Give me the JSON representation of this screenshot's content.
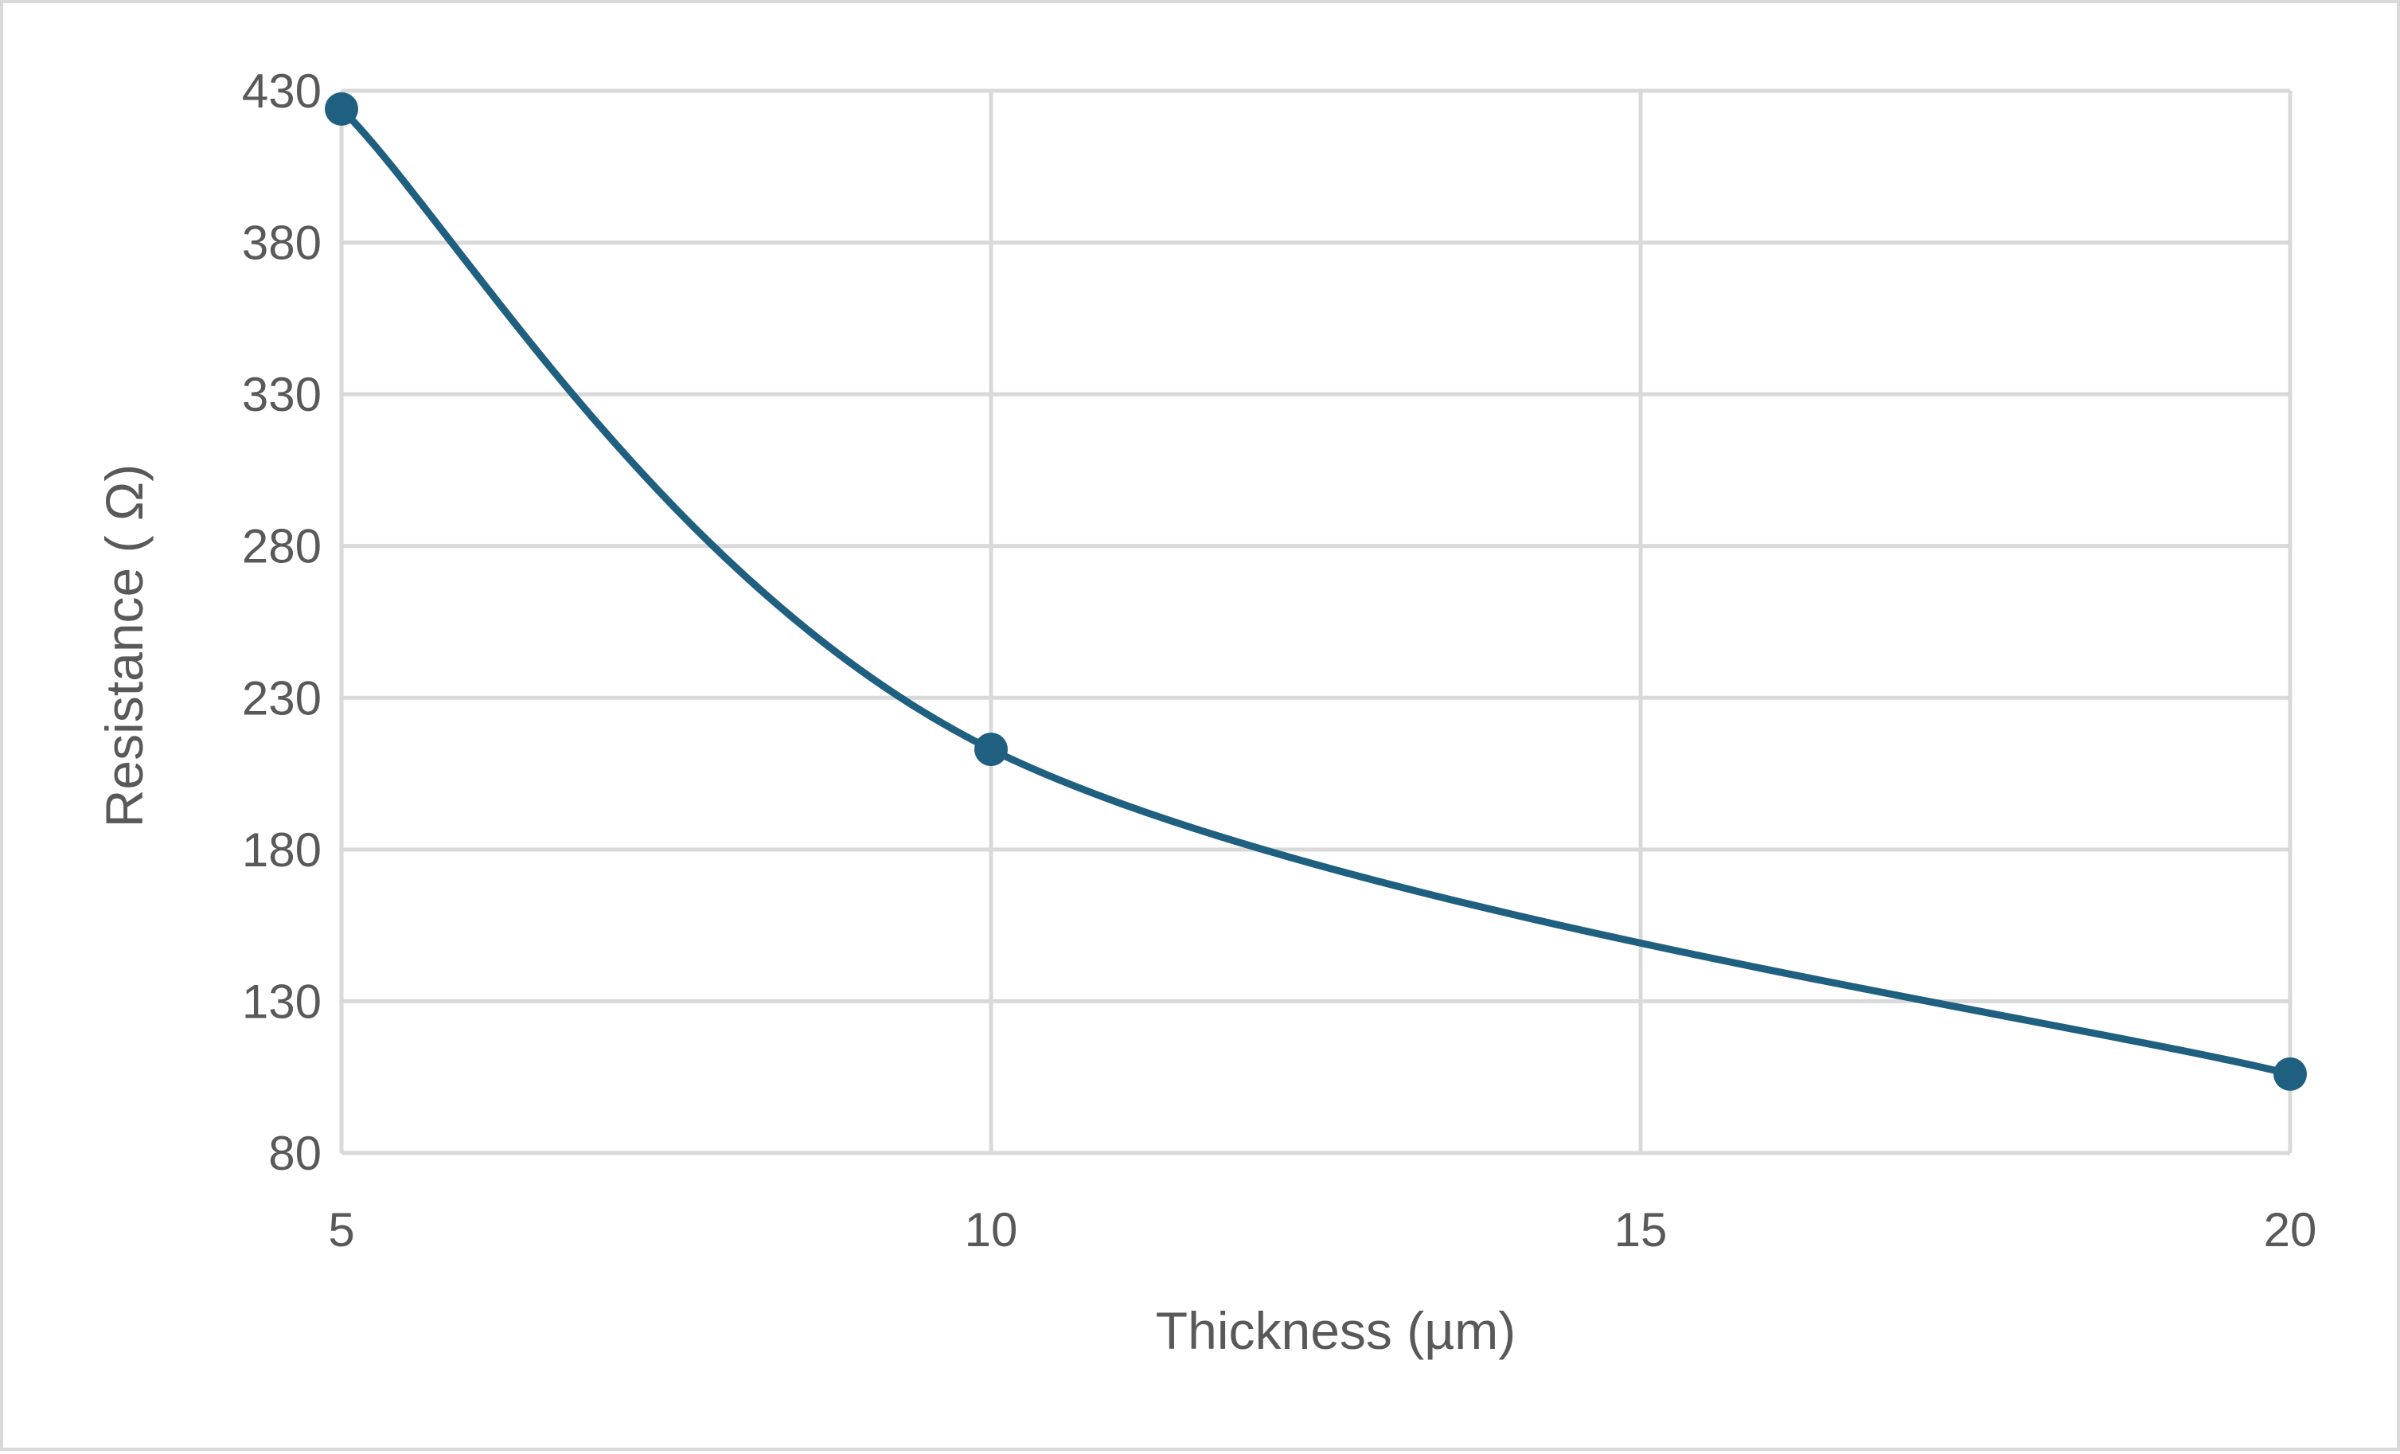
{
  "chart_data": {
    "type": "line",
    "smooth": true,
    "xlabel": "Thickness (µm)",
    "ylabel": "Resistance ( Ω)",
    "xlim": [
      5,
      20
    ],
    "ylim": [
      80,
      430
    ],
    "xticks": [
      5,
      10,
      15,
      20
    ],
    "yticks": [
      80,
      130,
      180,
      230,
      280,
      330,
      380,
      430
    ],
    "grid": true,
    "legend": "none",
    "series": [
      {
        "color": "#1f5f80",
        "points": [
          {
            "x": 5,
            "y": 424
          },
          {
            "x": 10,
            "y": 213
          },
          {
            "x": 20,
            "y": 106
          }
        ]
      }
    ]
  }
}
